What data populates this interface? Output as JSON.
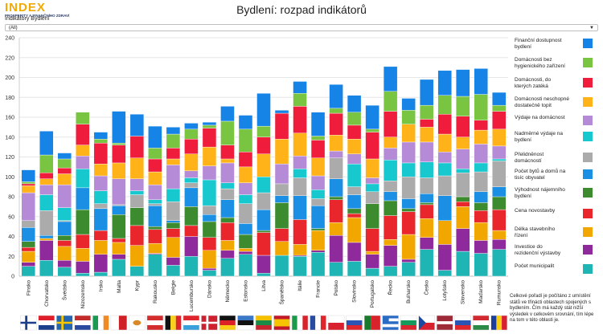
{
  "header": {
    "logo_text": "INDEX",
    "logo_subtext": "PROSPERITY A FINANČNÍHO ZDRAVÍ",
    "title": "Bydlení: rozpad indikátorů",
    "filter_label": "Indikátory Bydlení",
    "filter_value": "(All)"
  },
  "note": "Celkové pořadí je počítáno z umístění států ve třinácti oblastech spojených s bydlením. Čím má každý stát nižší výsledek v celkovém srovnání, tím lépe na tom v této oblasti je.",
  "chart_data": {
    "type": "bar",
    "stacked": true,
    "ylim": [
      0,
      240
    ],
    "yticks": [
      0,
      20,
      40,
      60,
      80,
      100,
      120,
      140,
      160,
      180,
      200,
      220,
      240
    ],
    "categories": [
      "Finsko",
      "Chorvatsko",
      "Švédsko",
      "Nizozemsko",
      "Irsko",
      "Malta",
      "Kypr",
      "Rakousko",
      "Belgie",
      "Lucembursko",
      "Dánsko",
      "Německo",
      "Estonsko",
      "Litva",
      "Španělsko",
      "Itálie",
      "Francie",
      "Polsko",
      "Slovinsko",
      "Portugalsko",
      "Řecko",
      "Bulharsko",
      "Česko",
      "Lotyšsko",
      "Slovensko",
      "Maďarsko",
      "Rumunsko"
    ],
    "flags": [
      "fi",
      "hr",
      "se",
      "nl",
      "ie",
      "mt",
      "cy",
      "at",
      "be",
      "lu",
      "dk",
      "de",
      "ee",
      "lt",
      "es",
      "it",
      "fr",
      "pl",
      "si",
      "pt",
      "gr",
      "bg",
      "cz",
      "lv",
      "sk",
      "hu",
      "ro"
    ],
    "series": [
      {
        "name": "Počet municipalit",
        "color": "#1fb5b5",
        "values": [
          10,
          16,
          9,
          3,
          4,
          17,
          10,
          22,
          11,
          20,
          6,
          18,
          22,
          3,
          21,
          20,
          24,
          14,
          15,
          8,
          10,
          14,
          27,
          6,
          25,
          23,
          27
        ]
      },
      {
        "name": "Investice do rezidenční výstavby",
        "color": "#8e2a9c",
        "values": [
          4,
          20,
          7,
          12,
          18,
          5,
          0,
          1,
          8,
          20,
          2,
          8,
          3,
          18,
          0,
          1,
          2,
          27,
          19,
          14,
          21,
          3,
          12,
          26,
          23,
          13,
          10
        ]
      },
      {
        "name": "Délka stavebního řízení",
        "color": "#f2a600",
        "values": [
          11,
          2,
          14,
          13,
          14,
          12,
          21,
          10,
          20,
          0,
          18,
          10,
          3,
          0,
          14,
          11,
          20,
          13,
          25,
          3,
          6,
          25,
          19,
          24,
          22,
          18,
          9
        ]
      },
      {
        "name": "Cena novostavby",
        "color": "#e8262c",
        "values": [
          4,
          0,
          6,
          14,
          10,
          4,
          20,
          14,
          9,
          11,
          13,
          18,
          0,
          23,
          13,
          25,
          0,
          23,
          4,
          23,
          24,
          23,
          14,
          0,
          5,
          12,
          21
        ]
      },
      {
        "name": "Výhodnost nájemního bydlení",
        "color": "#3c8c2f",
        "values": [
          6,
          0,
          5,
          25,
          0,
          24,
          18,
          3,
          6,
          19,
          16,
          5,
          14,
          2,
          26,
          0,
          2,
          3,
          5,
          25,
          15,
          3,
          2,
          0,
          5,
          8,
          13
        ]
      },
      {
        "name": "Počet bytů a domů na tisíc obyvatel",
        "color": "#1a8fe3",
        "values": [
          14,
          3,
          14,
          22,
          22,
          9,
          0,
          21,
          2,
          19,
          7,
          18,
          11,
          21,
          7,
          24,
          23,
          18,
          14,
          0,
          9,
          10,
          9,
          25,
          0,
          11,
          10
        ]
      },
      {
        "name": "Přelidněnost domácností",
        "color": "#ababab",
        "values": [
          7,
          25,
          1,
          0,
          5,
          1,
          13,
          2,
          19,
          5,
          9,
          11,
          20,
          17,
          12,
          18,
          7,
          21,
          8,
          12,
          11,
          22,
          16,
          20,
          24,
          20,
          26
        ]
      },
      {
        "name": "Nadměrné výdaje na bydlení",
        "color": "#17c9cf",
        "values": [
          0,
          16,
          13,
          19,
          13,
          0,
          4,
          4,
          13,
          5,
          26,
          6,
          9,
          16,
          0,
          9,
          9,
          0,
          23,
          8,
          21,
          14,
          16,
          13,
          4,
          9,
          2
        ]
      },
      {
        "name": "Výdaje na domácnost",
        "color": "#b58ad6",
        "values": [
          28,
          10,
          23,
          13,
          15,
          26,
          12,
          15,
          24,
          7,
          14,
          20,
          12,
          0,
          20,
          13,
          14,
          7,
          10,
          6,
          12,
          21,
          20,
          11,
          20,
          19,
          13
        ]
      },
      {
        "name": "Domácnosti neschopné dostatečně topit",
        "color": "#ffb319",
        "values": [
          7,
          6,
          11,
          11,
          12,
          16,
          21,
          13,
          6,
          17,
          19,
          4,
          16,
          23,
          25,
          23,
          18,
          16,
          15,
          19,
          11,
          18,
          15,
          18,
          12,
          14,
          17
        ]
      },
      {
        "name": "Domácnosti, do kterých zatéká",
        "color": "#ef1d3b",
        "values": [
          2,
          6,
          6,
          21,
          21,
          18,
          22,
          13,
          11,
          15,
          19,
          14,
          15,
          17,
          26,
          27,
          18,
          22,
          14,
          27,
          26,
          0,
          8,
          20,
          21,
          10,
          18
        ]
      },
      {
        "name": "Domácnosti bez hygienického zařízení",
        "color": "#79c441",
        "values": [
          2,
          18,
          9,
          12,
          4,
          2,
          0,
          11,
          14,
          10,
          3,
          24,
          23,
          11,
          0,
          13,
          4,
          5,
          13,
          3,
          20,
          14,
          14,
          19,
          20,
          26,
          6
        ]
      },
      {
        "name": "Finanční dostupnost bydlení",
        "color": "#1683e6",
        "values": [
          12,
          24,
          6,
          0,
          7,
          32,
          22,
          22,
          7,
          6,
          3,
          15,
          14,
          33,
          3,
          12,
          24,
          24,
          17,
          24,
          25,
          12,
          26,
          25,
          27,
          26,
          13
        ]
      }
    ]
  }
}
